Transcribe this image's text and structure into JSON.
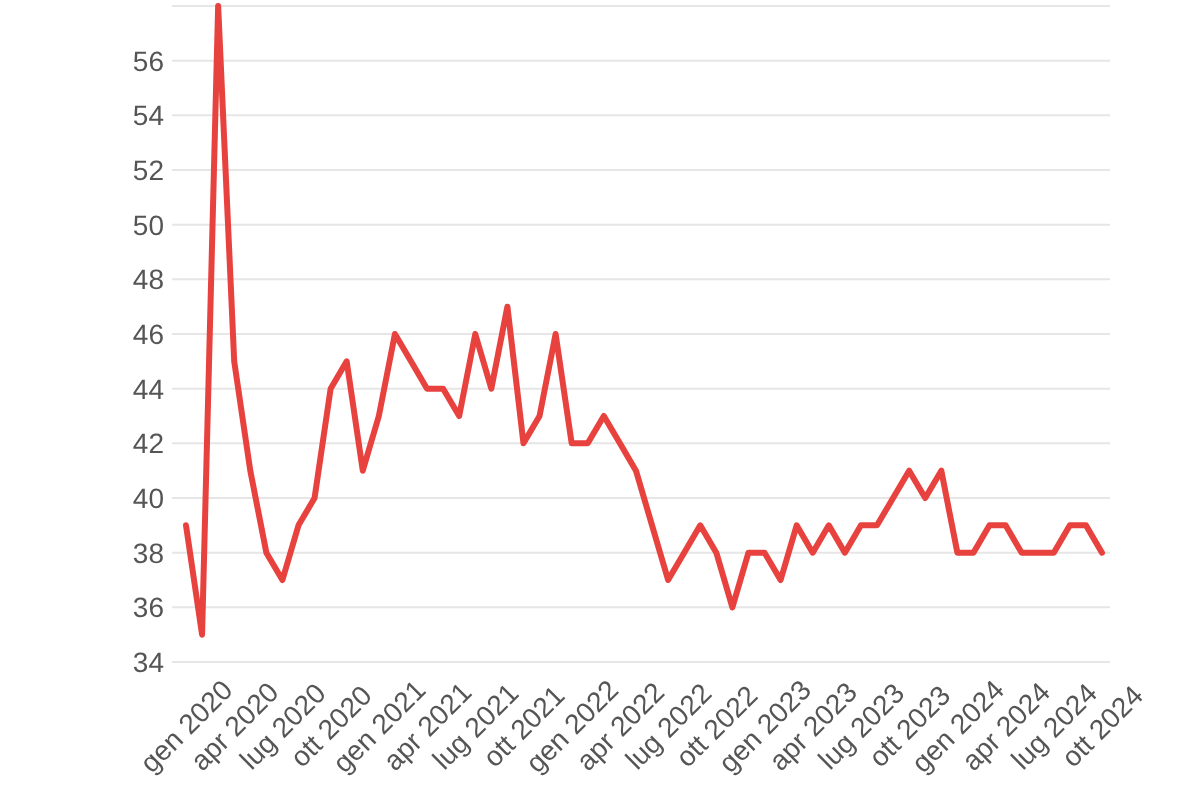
{
  "chart_data": {
    "type": "line",
    "categories": [
      "gen 2020",
      null,
      null,
      "apr 2020",
      null,
      null,
      "lug 2020",
      null,
      null,
      "ott 2020",
      null,
      null,
      "gen 2021",
      null,
      null,
      "apr 2021",
      null,
      null,
      "lug 2021",
      null,
      null,
      "ott 2021",
      null,
      null,
      "gen 2022",
      null,
      null,
      "apr 2022",
      null,
      null,
      "lug 2022",
      null,
      null,
      "ott 2022",
      null,
      null,
      "gen 2023",
      null,
      null,
      "apr 2023",
      null,
      null,
      "lug 2023",
      null,
      null,
      "ott 2023",
      null,
      null,
      "gen 2024",
      null,
      null,
      "apr 2024",
      null,
      null,
      "lug 2024",
      null,
      null,
      "ott 2024"
    ],
    "series": [
      {
        "color": "#e8423f",
        "values": [
          39,
          35,
          58,
          45,
          41,
          38,
          37,
          39,
          40,
          44,
          45,
          41,
          43,
          46,
          45,
          44,
          44,
          43,
          46,
          44,
          47,
          42,
          43,
          46,
          42,
          42,
          43,
          42,
          41,
          39,
          37,
          38,
          39,
          38,
          36,
          38,
          38,
          37,
          39,
          38,
          39,
          38,
          39,
          39,
          40,
          41,
          40,
          41,
          38,
          38,
          39,
          39,
          38,
          38,
          38,
          39,
          39,
          38
        ]
      }
    ],
    "ylim": [
      34,
      58
    ],
    "yticks": [
      34,
      36,
      38,
      40,
      42,
      44,
      46,
      48,
      50,
      52,
      54,
      56,
      {
        "value": 58,
        "label": null
      }
    ],
    "grid": "y",
    "marker": "none",
    "line_style": "solid"
  }
}
